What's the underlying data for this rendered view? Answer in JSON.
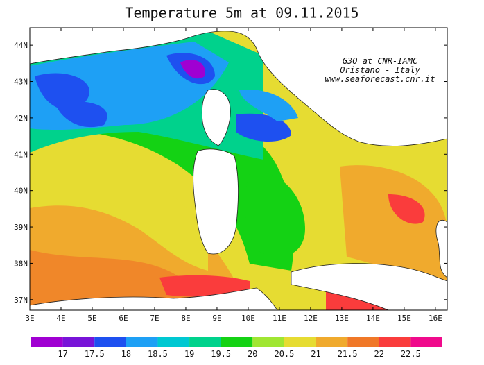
{
  "map": {
    "title": "Temperature 5m at 09.11.2015",
    "credits": [
      "G3O at CNR-IAMC",
      "Oristano - Italy",
      "www.seaforecast.cnr.it"
    ],
    "lon_range": [
      3,
      16.38
    ],
    "lat_range": [
      36.71,
      44.48
    ],
    "lon_ticks": [
      {
        "value": 3,
        "label": "3E"
      },
      {
        "value": 4,
        "label": "4E"
      },
      {
        "value": 5,
        "label": "5E"
      },
      {
        "value": 6,
        "label": "6E"
      },
      {
        "value": 7,
        "label": "7E"
      },
      {
        "value": 8,
        "label": "8E"
      },
      {
        "value": 9,
        "label": "9E"
      },
      {
        "value": 10,
        "label": "10E"
      },
      {
        "value": 11,
        "label": "11E"
      },
      {
        "value": 12,
        "label": "12E"
      },
      {
        "value": 13,
        "label": "13E"
      },
      {
        "value": 14,
        "label": "14E"
      },
      {
        "value": 15,
        "label": "15E"
      },
      {
        "value": 16,
        "label": "16E"
      }
    ],
    "lat_ticks": [
      {
        "value": 37,
        "label": "37N"
      },
      {
        "value": 38,
        "label": "38N"
      },
      {
        "value": 39,
        "label": "39N"
      },
      {
        "value": 40,
        "label": "40N"
      },
      {
        "value": 41,
        "label": "41N"
      },
      {
        "value": 42,
        "label": "42N"
      },
      {
        "value": 43,
        "label": "43N"
      },
      {
        "value": 44,
        "label": "44N"
      }
    ],
    "colorbar": {
      "levels": [
        17,
        17.5,
        18,
        18.5,
        19,
        19.5,
        20,
        20.5,
        21,
        21.5,
        22,
        22.5
      ],
      "colors": [
        "#a000d2",
        "#7814d8",
        "#1e50f0",
        "#1ea0f5",
        "#00c8d2",
        "#00d28c",
        "#14d214",
        "#a0e632",
        "#e6dc32",
        "#f0aa2d",
        "#f07828",
        "#fa3c3c",
        "#f00a8c"
      ]
    }
  }
}
